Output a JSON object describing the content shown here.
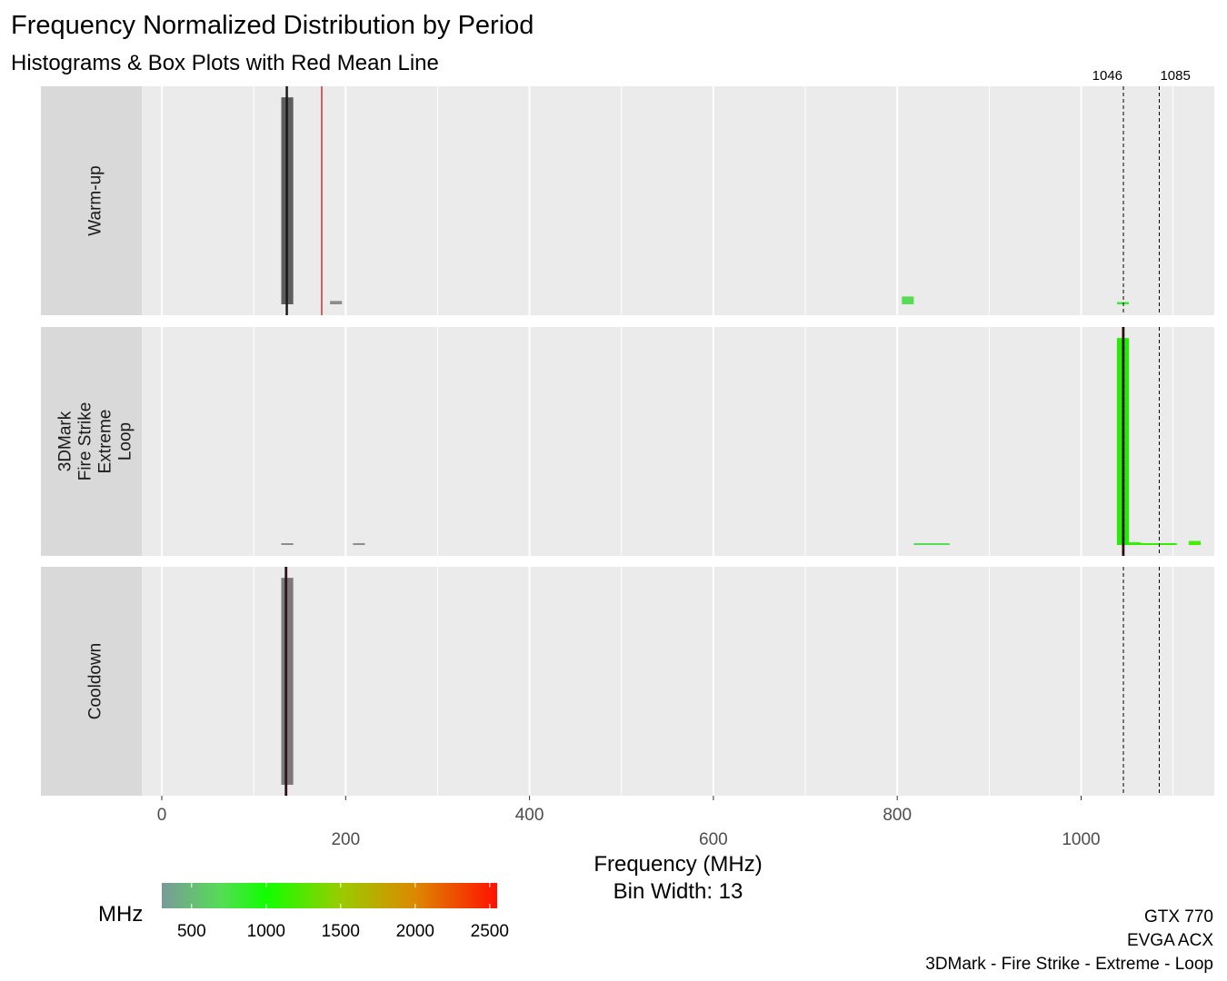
{
  "chart_data": {
    "type": "histogram",
    "title": "Frequency Normalized Distribution by Period",
    "subtitle": "Histograms & Box Plots with Red Mean Line",
    "xlabel": "Frequency (MHz)",
    "xlabel_sub": "Bin Width: 13",
    "bin_width": 13,
    "xlim": [
      -130,
      1145
    ],
    "x_ticks_major": [
      0,
      200,
      400,
      600,
      800,
      1000
    ],
    "x_ticks_minor": [
      100,
      300,
      500,
      700,
      900,
      1100
    ],
    "x_tick_labels": [
      "0",
      "200",
      "400",
      "600",
      "800",
      "1000"
    ],
    "reference_lines": [
      {
        "value": 1046,
        "label": "1046"
      },
      {
        "value": 1085,
        "label": "1085"
      }
    ],
    "facets": [
      {
        "label_lines": [
          "Warm-up"
        ],
        "mean": 174,
        "median": 136,
        "bins": [
          {
            "x": 130,
            "density": 0.93,
            "color": "#5e5e5e"
          },
          {
            "x": 183,
            "density": 0.015,
            "color": "#8c8c8c"
          },
          {
            "x": 805,
            "density": 0.035,
            "color": "#55dd55"
          },
          {
            "x": 1039,
            "density": 0.01,
            "color": "#33ee33"
          }
        ]
      },
      {
        "label_lines": [
          "3DMark",
          "Fire Strike",
          "Extreme",
          "Loop"
        ],
        "mean": 1045,
        "median": 1046,
        "bins": [
          {
            "x": 130,
            "density": 0.004,
            "color": "#8c8c8c"
          },
          {
            "x": 208,
            "density": 0.004,
            "color": "#8c8c8c"
          },
          {
            "x": 818,
            "density": 0.003,
            "color": "#55dd55",
            "width": 39
          },
          {
            "x": 1039,
            "density": 0.93,
            "color": "#22ee00"
          },
          {
            "x": 1052,
            "density": 0.012,
            "color": "#33ee00"
          },
          {
            "x": 1065,
            "density": 0.006,
            "color": "#33ee00"
          },
          {
            "x": 1078,
            "density": 0.008,
            "color": "#33ee00"
          },
          {
            "x": 1091,
            "density": 0.006,
            "color": "#33ee00"
          },
          {
            "x": 1117,
            "density": 0.018,
            "color": "#44ee00"
          }
        ]
      },
      {
        "label_lines": [
          "Cooldown"
        ],
        "mean": 136,
        "median": 135,
        "bins": [
          {
            "x": 130,
            "density": 0.93,
            "color": "#7a7a7a"
          }
        ]
      }
    ],
    "legend": {
      "title": "MHz",
      "ticks": [
        500,
        1000,
        1500,
        2000,
        2500
      ],
      "tick_labels": [
        "500",
        "1000",
        "1500",
        "2000",
        "2500"
      ],
      "range": [
        300,
        2550
      ],
      "gradient": [
        {
          "value": 300,
          "color": "#7a9a9a"
        },
        {
          "value": 700,
          "color": "#55dd55"
        },
        {
          "value": 1000,
          "color": "#11ff00"
        },
        {
          "value": 1500,
          "color": "#99cc00"
        },
        {
          "value": 2000,
          "color": "#dd8800"
        },
        {
          "value": 2550,
          "color": "#ff1100"
        }
      ]
    },
    "caption": [
      "GTX 770",
      "EVGA ACX",
      "3DMark - Fire Strike - Extreme - Loop"
    ],
    "colors": {
      "panel_bg": "#ebebeb",
      "strip_bg": "#d9d9d9",
      "grid": "#ffffff",
      "mean_line": "#cc0000",
      "median_line": "#1a1a1a"
    }
  }
}
